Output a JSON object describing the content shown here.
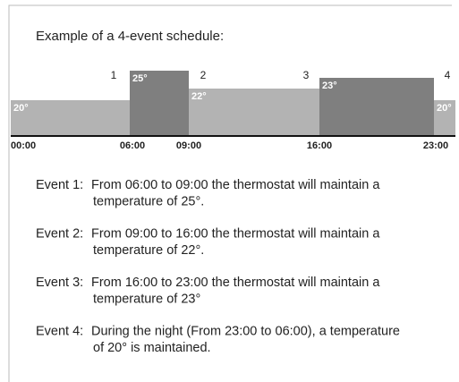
{
  "title": "Example of a 4-event schedule:",
  "diagram": {
    "times": [
      "00:00",
      "06:00",
      "09:00",
      "16:00",
      "23:00"
    ],
    "blocks": [
      {
        "temp": "20°"
      },
      {
        "number": "1",
        "temp": "25°"
      },
      {
        "number": "2",
        "temp": "22°"
      },
      {
        "number": "3",
        "temp": "23°"
      },
      {
        "number": "4",
        "temp": "20°"
      }
    ]
  },
  "events": [
    {
      "label": "Event 1:",
      "lines": [
        "From 06:00 to 09:00 the thermostat will maintain a",
        "temperature of 25°."
      ]
    },
    {
      "label": "Event 2:",
      "lines": [
        "From 09:00 to 16:00 the thermostat will maintain a",
        "temperature of 22°."
      ]
    },
    {
      "label": "Event 3:",
      "lines": [
        "From 16:00 to 23:00 the thermostat will maintain a",
        "temperature of 23°"
      ]
    },
    {
      "label": "Event 4:",
      "lines": [
        "During the night (From 23:00 to 06:00), a temperature",
        "of 20° is maintained."
      ]
    }
  ]
}
